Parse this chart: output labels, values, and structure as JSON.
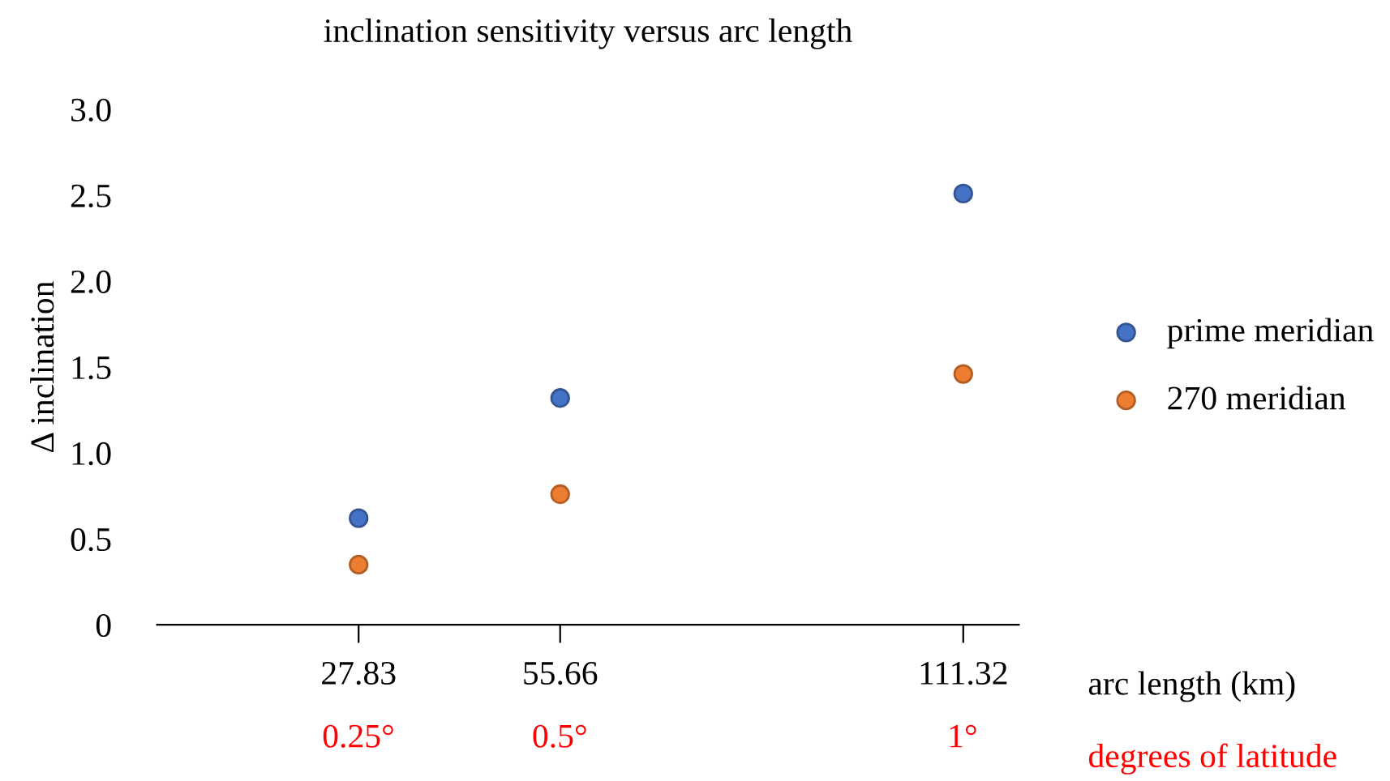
{
  "chart_data": {
    "type": "scatter",
    "title": "inclination sensitivity versus arc length",
    "xlabel": "arc length (km)",
    "ylabel": "Δ inclination",
    "x2label": "degrees of latitude",
    "x": [
      27.83,
      55.66,
      111.32
    ],
    "series": [
      {
        "name": "prime meridian",
        "color": "#4472c4",
        "values": [
          0.62,
          1.32,
          2.51
        ]
      },
      {
        "name": "270 meridian",
        "color": "#ed7d31",
        "values": [
          0.35,
          0.76,
          1.46
        ]
      }
    ],
    "xlim": [
      0,
      119
    ],
    "xticks": [
      27.83,
      55.66,
      111.32
    ],
    "x2lim": [
      0,
      1.07
    ],
    "x2ticks": [
      {
        "value": 0.25,
        "label": "0.25°"
      },
      {
        "value": 0.5,
        "label": "0.5°"
      },
      {
        "value": 1,
        "label": "1°"
      }
    ],
    "ylim": [
      0,
      3.0
    ],
    "yticks": [
      0,
      0.5,
      {
        "value": 1,
        "label": "1.0"
      },
      1.5,
      {
        "value": 2,
        "label": "2.0"
      },
      2.5,
      {
        "value": 3,
        "label": "3.0"
      }
    ],
    "grid": false,
    "legend": "right",
    "marker": "circle"
  }
}
